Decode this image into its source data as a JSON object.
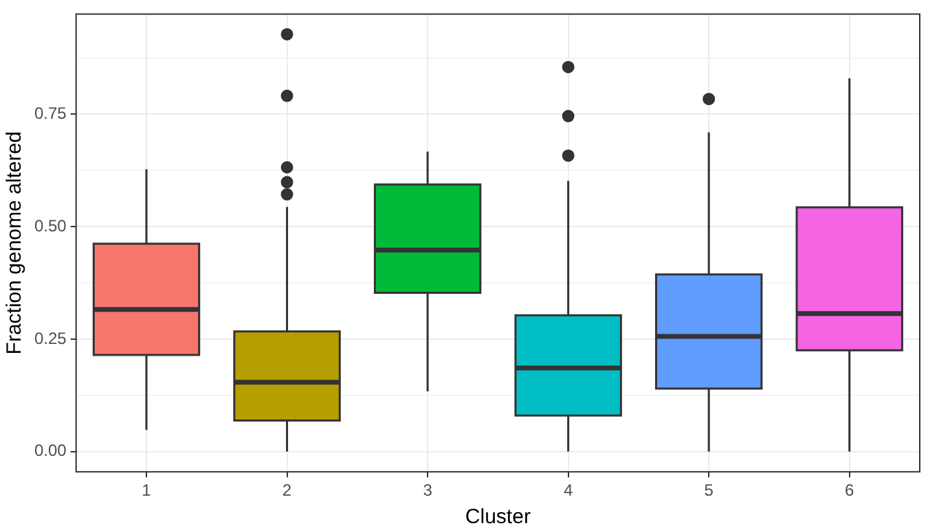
{
  "chart_data": {
    "type": "box",
    "xlabel": "Cluster",
    "ylabel": "Fraction genome altered",
    "categories": [
      "1",
      "2",
      "3",
      "4",
      "5",
      "6"
    ],
    "colors": [
      "#f8766d",
      "#b79f00",
      "#00ba38",
      "#00bfc4",
      "#619cff",
      "#f564e3"
    ],
    "boxes": [
      {
        "low": 0.048,
        "q1": 0.215,
        "median": 0.316,
        "q3": 0.462,
        "high": 0.628
      },
      {
        "low": 0,
        "q1": 0.069,
        "median": 0.154,
        "q3": 0.267,
        "high": 0.544,
        "outliers": [
          0.572,
          0.599,
          0.632,
          0.791,
          0.928
        ]
      },
      {
        "low": 0.134,
        "q1": 0.353,
        "median": 0.448,
        "q3": 0.594,
        "high": 0.667
      },
      {
        "low": 0,
        "q1": 0.08,
        "median": 0.186,
        "q3": 0.303,
        "high": 0.602,
        "outliers": [
          0.658,
          0.746,
          0.855
        ]
      },
      {
        "low": 0,
        "q1": 0.14,
        "median": 0.256,
        "q3": 0.394,
        "high": 0.71,
        "outliers": [
          0.784
        ]
      },
      {
        "low": 0,
        "q1": 0.225,
        "median": 0.307,
        "q3": 0.543,
        "high": 0.83
      }
    ],
    "ylim": [
      -0.045,
      0.973
    ],
    "yticks": [
      {
        "value": 0,
        "label": "0.00"
      },
      {
        "value": 0.125,
        "label": null
      },
      {
        "value": 0.25,
        "label": "0.25"
      },
      {
        "value": 0.375,
        "label": null
      },
      {
        "value": 0.5,
        "label": "0.50"
      },
      {
        "value": 0.625,
        "label": null
      },
      {
        "value": 0.75,
        "label": "0.75"
      },
      {
        "value": 0.875,
        "label": null
      }
    ],
    "grid": true
  }
}
